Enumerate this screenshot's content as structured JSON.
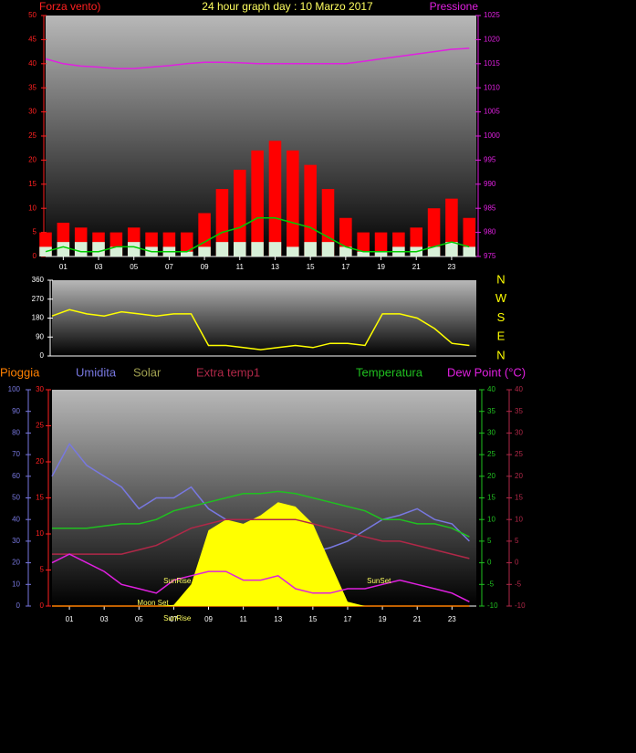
{
  "chart_data": [
    {
      "type": "bar",
      "title": "24 hour graph day : 10 Marzo 2017",
      "ylabel": "Forza vento)",
      "y2label": "Pressione",
      "x": [
        0,
        1,
        2,
        3,
        4,
        5,
        6,
        7,
        8,
        9,
        10,
        11,
        12,
        13,
        14,
        15,
        16,
        17,
        18,
        19,
        20,
        21,
        22,
        23,
        24
      ],
      "xlim": [
        0,
        24.4
      ],
      "xticks": [
        {
          "value": 1,
          "label": "01"
        },
        {
          "value": 3,
          "label": "03"
        },
        {
          "value": 5,
          "label": "05"
        },
        {
          "value": 7,
          "label": "07"
        },
        {
          "value": 9,
          "label": "09"
        },
        {
          "value": 11,
          "label": "11"
        },
        {
          "value": 13,
          "label": "13"
        },
        {
          "value": 15,
          "label": "15"
        },
        {
          "value": 17,
          "label": "17"
        },
        {
          "value": 19,
          "label": "19"
        },
        {
          "value": 21,
          "label": "21"
        },
        {
          "value": 23,
          "label": "23"
        }
      ],
      "ylim": [
        0,
        50
      ],
      "yticks": [
        0,
        5,
        10,
        15,
        20,
        25,
        30,
        35,
        40,
        45,
        50
      ],
      "y2lim": [
        975,
        1025
      ],
      "y2ticks": [
        975,
        980,
        985,
        990,
        995,
        1000,
        1005,
        1010,
        1015,
        1020,
        1025
      ],
      "series": [
        {
          "style": "bar",
          "color": "#ff0000",
          "values": [
            5,
            7,
            6,
            5,
            5,
            6,
            5,
            5,
            5,
            9,
            14,
            18,
            22,
            24,
            22,
            19,
            14,
            8,
            5,
            5,
            5,
            6,
            10,
            12,
            8
          ]
        },
        {
          "style": "bar",
          "color": "#d8f0d8",
          "values": [
            2,
            3,
            3,
            3,
            2,
            3,
            2,
            2,
            1,
            2,
            3,
            3,
            3,
            3,
            2,
            3,
            3,
            2,
            1,
            1,
            2,
            2,
            2,
            3,
            2
          ]
        },
        {
          "style": "line",
          "color": "#00cc00",
          "values": [
            1,
            2,
            1,
            1,
            2,
            2,
            1,
            1,
            1,
            3,
            5,
            6,
            8,
            8,
            7,
            6,
            4,
            2,
            1,
            1,
            1,
            1,
            2,
            3,
            2
          ]
        },
        {
          "style": "line",
          "color": "#e020e0",
          "axis": "y2",
          "values": [
            1016,
            1015,
            1014.5,
            1014.3,
            1014,
            1014,
            1014.3,
            1014.6,
            1015,
            1015.3,
            1015.3,
            1015.2,
            1015,
            1015,
            1015,
            1015,
            1015,
            1015,
            1015.5,
            1016,
            1016.5,
            1017,
            1017.5,
            1018,
            1018.2
          ]
        }
      ]
    },
    {
      "type": "line",
      "compass": [
        "N",
        "W",
        "S",
        "E",
        "N"
      ],
      "x": [
        0,
        1,
        2,
        3,
        4,
        5,
        6,
        7,
        8,
        9,
        10,
        11,
        12,
        13,
        14,
        15,
        16,
        17,
        18,
        19,
        20,
        21,
        22,
        23,
        24
      ],
      "xlim": [
        0,
        24.4
      ],
      "ylim": [
        0,
        360
      ],
      "yticks": [
        0,
        90,
        180,
        270,
        360
      ],
      "series": [
        {
          "style": "line",
          "color": "#ffff00",
          "values": [
            190,
            220,
            200,
            190,
            210,
            200,
            190,
            200,
            200,
            50,
            50,
            40,
            30,
            40,
            50,
            40,
            60,
            60,
            50,
            200,
            200,
            180,
            130,
            60,
            50
          ]
        }
      ]
    },
    {
      "type": "line",
      "x": [
        0,
        1,
        2,
        3,
        4,
        5,
        6,
        7,
        8,
        9,
        10,
        11,
        12,
        13,
        14,
        15,
        16,
        17,
        18,
        19,
        20,
        21,
        22,
        23,
        24
      ],
      "xlim": [
        0,
        24.4
      ],
      "xticks": [
        {
          "value": 1,
          "label": "01"
        },
        {
          "value": 3,
          "label": "03"
        },
        {
          "value": 5,
          "label": "05"
        },
        {
          "value": 7,
          "label": "07"
        },
        {
          "value": 9,
          "label": "09"
        },
        {
          "value": 11,
          "label": "11"
        },
        {
          "value": 13,
          "label": "13"
        },
        {
          "value": 15,
          "label": "15"
        },
        {
          "value": 17,
          "label": "17"
        },
        {
          "value": 19,
          "label": "19"
        },
        {
          "value": 21,
          "label": "21"
        },
        {
          "value": 23,
          "label": "23"
        }
      ],
      "ylim": [
        0,
        100
      ],
      "yticks": [
        0,
        10,
        20,
        30,
        40,
        50,
        60,
        70,
        80,
        90,
        100
      ],
      "y2lim": [
        0,
        30
      ],
      "y2ticks": [
        0,
        5,
        10,
        15,
        20,
        25,
        30
      ],
      "y3lim": [
        -10,
        40
      ],
      "y3ticks": [
        -10,
        -5,
        0,
        5,
        10,
        15,
        20,
        25,
        30,
        35,
        40
      ],
      "y4lim": [
        -10,
        40
      ],
      "y4ticks": [
        -10,
        -5,
        0,
        5,
        10,
        15,
        20,
        25,
        30,
        35,
        40
      ],
      "series": [
        {
          "name": "Pioggia",
          "style": "line",
          "color": "#ff8000",
          "axis": "y2",
          "values": [
            0,
            0,
            0,
            0,
            0,
            0,
            0,
            0,
            0,
            0,
            0,
            0,
            0,
            0,
            0,
            0,
            0,
            0,
            0,
            0,
            0,
            0,
            0,
            0,
            0
          ]
        },
        {
          "name": "Umidita",
          "style": "line",
          "color": "#7878e0",
          "values": [
            60,
            75,
            65,
            60,
            55,
            45,
            50,
            50,
            55,
            45,
            40,
            35,
            35,
            30,
            30,
            25,
            27,
            30,
            35,
            40,
            42,
            45,
            40,
            38,
            30
          ]
        },
        {
          "name": "Solar",
          "style": "area",
          "color": "#ffff00",
          "values": [
            0,
            0,
            0,
            0,
            0,
            0,
            0,
            0.5,
            10,
            35,
            40,
            38,
            42,
            48,
            46,
            38,
            20,
            2,
            0,
            0,
            0,
            0,
            0,
            0,
            0
          ]
        },
        {
          "name": "Extra temp1",
          "style": "line",
          "color": "#b02848",
          "axis": "y4",
          "values": [
            2,
            2,
            2,
            2,
            2,
            3,
            4,
            6,
            8,
            9,
            10,
            10,
            10,
            10,
            10,
            9,
            8,
            7,
            6,
            5,
            5,
            4,
            3,
            2,
            1
          ]
        },
        {
          "name": "Temperatura",
          "style": "line",
          "color": "#20c020",
          "axis": "y3",
          "values": [
            8,
            8,
            8,
            8.5,
            9,
            9,
            10,
            12,
            13,
            14,
            15,
            16,
            16,
            16.5,
            16,
            15,
            14,
            13,
            12,
            10,
            10,
            9,
            9,
            8,
            6
          ]
        },
        {
          "name": "Dew Point (°C)",
          "style": "line",
          "color": "#e020e0",
          "axis": "y4",
          "values": [
            0,
            2,
            0,
            -2,
            -5,
            -6,
            -7,
            -4,
            -3,
            -2,
            -2,
            -4,
            -4,
            -3,
            -6,
            -7,
            -7,
            -6,
            -6,
            -5,
            -4,
            -5,
            -6,
            -7,
            -9
          ]
        }
      ],
      "annotations": [
        {
          "text": "SunRise",
          "x": 7.2
        },
        {
          "text": "SunSet",
          "x": 18.8
        },
        {
          "text": "Moon Set",
          "x": 5.8
        },
        {
          "text": "SunRise",
          "x": 7.2
        }
      ]
    }
  ]
}
